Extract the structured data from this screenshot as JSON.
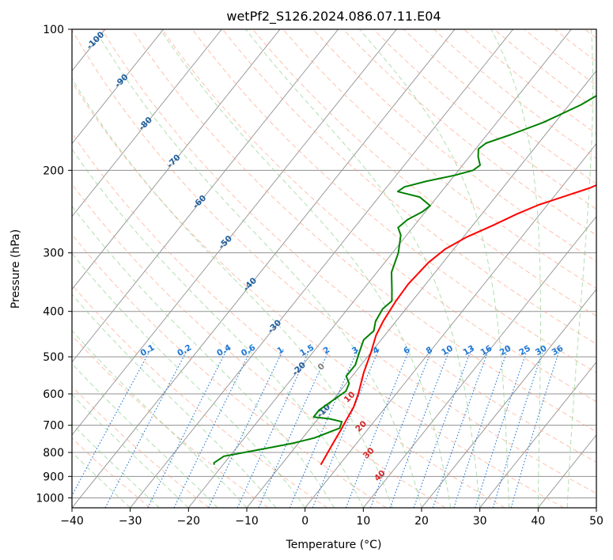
{
  "chart_data": {
    "type": "line",
    "title": "wetPf2_S126.2024.086.07.11.E04",
    "xlabel": "Temperature (°C)",
    "ylabel": "Pressure (hPa)",
    "xlim": [
      -40,
      50
    ],
    "ylim": [
      1050,
      100
    ],
    "y_scale": "log",
    "grid": true,
    "x_ticks": [
      -40,
      -30,
      -20,
      -10,
      0,
      10,
      20,
      30,
      40,
      50
    ],
    "x_tick_labels": [
      "−40",
      "−30",
      "−20",
      "−10",
      "0",
      "10",
      "20",
      "30",
      "40",
      "50"
    ],
    "y_ticks": [
      100,
      200,
      300,
      400,
      500,
      600,
      700,
      800,
      900,
      1000
    ],
    "y_tick_labels": [
      "100",
      "200",
      "300",
      "400",
      "500",
      "600",
      "700",
      "800",
      "900",
      "1000"
    ],
    "series": [
      {
        "color": "#ff0000",
        "points": [
          [
            -3.2,
            850
          ],
          [
            -3.6,
            810
          ],
          [
            -4.0,
            770
          ],
          [
            -4.5,
            720
          ],
          [
            -5.0,
            680
          ],
          [
            -5.5,
            640
          ],
          [
            -6.5,
            600
          ],
          [
            -8.5,
            540
          ],
          [
            -10.0,
            490
          ],
          [
            -11.5,
            450
          ],
          [
            -12.2,
            420
          ],
          [
            -12.8,
            380
          ],
          [
            -13.0,
            350
          ],
          [
            -12.5,
            315
          ],
          [
            -11.5,
            295
          ],
          [
            -9.5,
            278
          ],
          [
            -6.5,
            262
          ],
          [
            -4.0,
            248
          ],
          [
            -1.5,
            237
          ],
          [
            1.5,
            228
          ],
          [
            5.0,
            218
          ],
          [
            7.5,
            208
          ],
          [
            9.0,
            200
          ],
          [
            11.5,
            190
          ],
          [
            17.0,
            170
          ],
          [
            22.0,
            150
          ],
          [
            26.0,
            135
          ],
          [
            30.0,
            118
          ],
          [
            33.0,
            106
          ],
          [
            34.5,
            100
          ]
        ]
      },
      {
        "color": "#008000",
        "points": [
          [
            -21.5,
            850
          ],
          [
            -21.8,
            842
          ],
          [
            -21.0,
            815
          ],
          [
            -17.0,
            795
          ],
          [
            -14.0,
            780
          ],
          [
            -11.0,
            765
          ],
          [
            -8.0,
            745
          ],
          [
            -5.0,
            710
          ],
          [
            -5.5,
            688
          ],
          [
            -8.0,
            678
          ],
          [
            -11.0,
            672
          ],
          [
            -11.0,
            650
          ],
          [
            -10.0,
            620
          ],
          [
            -9.0,
            592
          ],
          [
            -9.5,
            570
          ],
          [
            -11.0,
            550
          ],
          [
            -11.0,
            520
          ],
          [
            -12.0,
            490
          ],
          [
            -13.0,
            460
          ],
          [
            -12.5,
            440
          ],
          [
            -13.5,
            420
          ],
          [
            -14.0,
            395
          ],
          [
            -13.5,
            380
          ],
          [
            -15.0,
            360
          ],
          [
            -17.5,
            330
          ],
          [
            -19.0,
            300
          ],
          [
            -21.0,
            275
          ],
          [
            -22.5,
            265
          ],
          [
            -22.0,
            255
          ],
          [
            -20.5,
            245
          ],
          [
            -20.0,
            238
          ],
          [
            -23.0,
            228
          ],
          [
            -27.5,
            222
          ],
          [
            -27.0,
            217
          ],
          [
            -24.0,
            211
          ],
          [
            -20.0,
            205
          ],
          [
            -17.5,
            200
          ],
          [
            -17.0,
            195
          ],
          [
            -18.5,
            187
          ],
          [
            -19.5,
            180
          ],
          [
            -19.0,
            175
          ],
          [
            -16.0,
            168
          ],
          [
            -12.0,
            158
          ],
          [
            -8.0,
            145
          ],
          [
            -5.0,
            132
          ],
          [
            -3.0,
            122
          ],
          [
            -1.5,
            116
          ],
          [
            0.5,
            108
          ],
          [
            1.5,
            104
          ],
          [
            2.5,
            100
          ]
        ]
      }
    ],
    "dry_adiabat_labels": [
      "-100",
      "-90",
      "-80",
      "-70",
      "-60",
      "-50",
      "-40",
      "-30",
      "-20",
      "-10"
    ],
    "mixing_ratio_labels": [
      "0.1",
      "0.2",
      "0.4",
      "0.6",
      "1",
      "1.5",
      "2",
      "3",
      "4",
      "6",
      "8",
      "10",
      "13",
      "16",
      "20",
      "25",
      "30",
      "36"
    ],
    "moist_adiabat_labels": [
      "0",
      "10",
      "20",
      "30",
      "40"
    ],
    "colors": {
      "temperature": "#ff0000",
      "dewpoint": "#008000",
      "isotherm": "#909090",
      "dry_adiabat": "#ff9f80",
      "moist_adiabat": "#8fd18f",
      "mixing_ratio": "#1f77d4",
      "annotation_dry": "#1f5fa0",
      "annotation_moist": "#d62728",
      "annotation_zero": "#7f7f7f"
    }
  }
}
